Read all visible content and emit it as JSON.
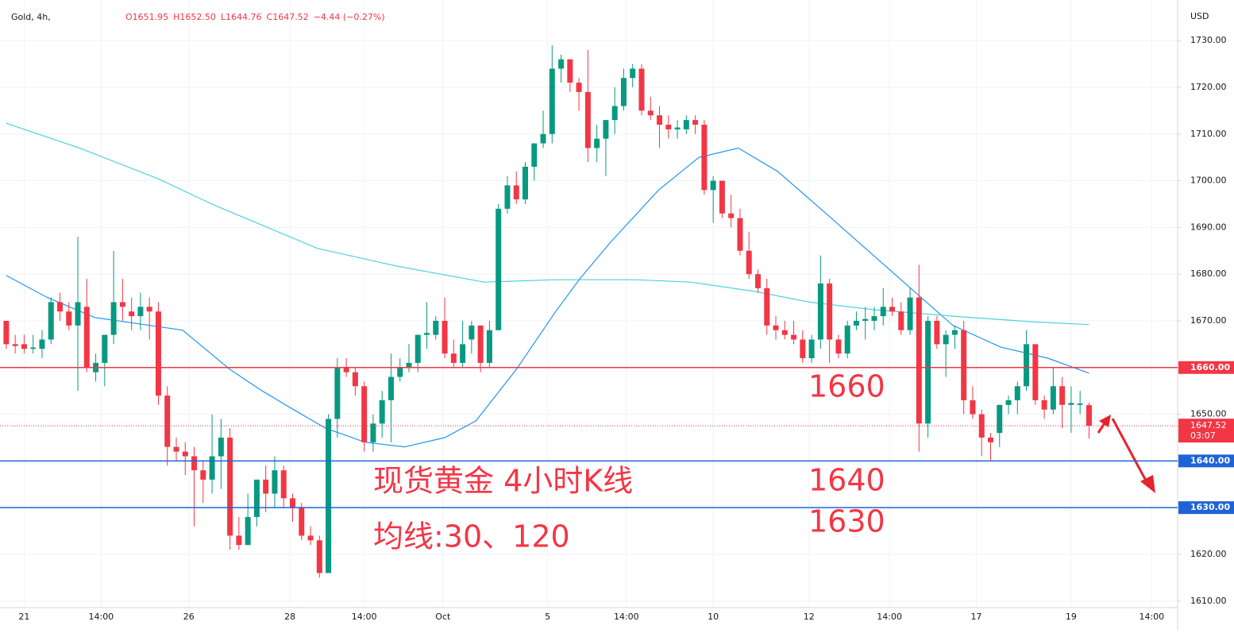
{
  "chart_data": {
    "type": "candlestick",
    "title": "Gold, 4h,",
    "legend": [
      "O1651.95",
      "H1652.50",
      "L1644.76",
      "C1647.52",
      "−4.44 (−0.27%)"
    ],
    "currency": "USD",
    "up_color": "#089981",
    "down_color": "#f23645",
    "open": [
      1670,
      1665,
      1665,
      1664,
      1664,
      1666,
      1674,
      1672,
      1669,
      1673,
      1659,
      1661,
      1667,
      1674,
      1672,
      1671,
      1673,
      1672,
      1654,
      1643,
      1642,
      1641,
      1638,
      1636,
      1641,
      1645,
      1624,
      1622,
      1628,
      1636,
      1633,
      1638,
      1632,
      1630,
      1624,
      1623,
      1616,
      1649,
      1660,
      1659,
      1656,
      1644,
      1648,
      1653,
      1658,
      1660,
      1661,
      1667,
      1667,
      1670,
      1663,
      1661,
      1666,
      1669,
      1661,
      1668,
      1694,
      1699,
      1696,
      1703,
      1708,
      1710,
      1724,
      1726,
      1721,
      1719,
      1707,
      1709,
      1713,
      1716,
      1722,
      1724,
      1715,
      1714,
      1712,
      1711,
      1711,
      1713,
      1712,
      1698,
      1700,
      1693,
      1692,
      1685,
      1680,
      1677,
      1669,
      1668,
      1667,
      1666,
      1662,
      1666,
      1678,
      1666,
      1663,
      1669,
      1670,
      1670,
      1671,
      1673,
      1672,
      1668,
      1675,
      1648,
      1670,
      1665,
      1667,
      1668,
      1653,
      1650,
      1645,
      1646,
      1652,
      1653,
      1656,
      1665,
      1653,
      1651,
      1656,
      1652,
      1652,
      1651.95
    ],
    "high": [
      1670,
      1667,
      1667,
      1667,
      1668,
      1675,
      1676,
      1674,
      1688,
      1679,
      1663,
      1667,
      1685,
      1679,
      1675,
      1676,
      1675,
      1674,
      1656,
      1645,
      1644,
      1643,
      1640,
      1650,
      1649,
      1647,
      1628,
      1633,
      1636,
      1639,
      1641,
      1639,
      1633,
      1631,
      1626,
      1624,
      1650,
      1662,
      1662,
      1660,
      1657,
      1650,
      1655,
      1663,
      1662,
      1665,
      1667,
      1674,
      1671,
      1675,
      1666,
      1670,
      1670,
      1669,
      1670,
      1695,
      1701,
      1702,
      1704,
      1708,
      1715,
      1729,
      1727,
      1726,
      1722,
      1728,
      1712,
      1713,
      1720,
      1724,
      1725,
      1725,
      1718,
      1716,
      1714,
      1713,
      1714,
      1714,
      1713,
      1701,
      1700,
      1697,
      1694,
      1689,
      1681,
      1679,
      1671,
      1670,
      1670,
      1668,
      1667,
      1684,
      1679,
      1667,
      1670,
      1672,
      1673,
      1673,
      1677,
      1675,
      1674,
      1677,
      1682,
      1671,
      1671,
      1668,
      1669,
      1670,
      1656,
      1651,
      1646,
      1652,
      1654,
      1657,
      1668,
      1665,
      1654,
      1660,
      1658,
      1656,
      1655,
      1652.5
    ],
    "low": [
      1664,
      1663,
      1663,
      1663,
      1662,
      1665,
      1670,
      1668,
      1655,
      1659,
      1657,
      1656,
      1665,
      1670,
      1668,
      1668,
      1666,
      1652,
      1639,
      1640,
      1637,
      1626,
      1631,
      1633,
      1634,
      1621,
      1621,
      1622,
      1626,
      1629,
      1630,
      1630,
      1627,
      1623,
      1622,
      1615,
      1616,
      1645,
      1658,
      1654,
      1642,
      1642,
      1645,
      1644,
      1657,
      1659,
      1659,
      1664,
      1666,
      1662,
      1660,
      1660,
      1663,
      1659,
      1660,
      1668,
      1693,
      1695,
      1695,
      1700,
      1707,
      1708,
      1721,
      1719,
      1715,
      1704,
      1704,
      1701,
      1710,
      1715,
      1720,
      1714,
      1713,
      1707,
      1709,
      1709,
      1710,
      1710,
      1697,
      1691,
      1692,
      1690,
      1684,
      1679,
      1676,
      1667,
      1666,
      1666,
      1665,
      1661,
      1661,
      1664,
      1661,
      1662,
      1662,
      1668,
      1666,
      1668,
      1669,
      1671,
      1667,
      1667,
      1642,
      1645,
      1664,
      1658,
      1664,
      1650,
      1649,
      1641,
      1640,
      1643,
      1650,
      1650,
      1655,
      1652,
      1649,
      1650,
      1647,
      1646,
      1650,
      1644.76
    ],
    "close": [
      1665,
      1664.6,
      1664,
      1664.3,
      1666,
      1674,
      1672,
      1669,
      1674,
      1660,
      1661,
      1667,
      1674,
      1673,
      1671,
      1673,
      1672,
      1654,
      1643,
      1642,
      1641,
      1638,
      1636,
      1641,
      1645,
      1624,
      1622,
      1628,
      1636,
      1633,
      1638,
      1632,
      1630,
      1624,
      1623,
      1616,
      1649,
      1660,
      1659,
      1656,
      1644,
      1648,
      1653,
      1658,
      1660,
      1661,
      1667,
      1667.4,
      1670,
      1663,
      1661,
      1665,
      1669,
      1661,
      1668,
      1694,
      1699,
      1696,
      1703,
      1708,
      1710,
      1724,
      1726,
      1721,
      1719,
      1707,
      1709,
      1713,
      1716,
      1722,
      1724,
      1715,
      1714,
      1712,
      1711,
      1711.4,
      1713,
      1712,
      1698,
      1700,
      1693,
      1692,
      1685,
      1680,
      1677,
      1669,
      1668,
      1667,
      1666,
      1662,
      1666,
      1678,
      1666,
      1663,
      1669,
      1670,
      1670.4,
      1671,
      1673,
      1672,
      1668,
      1675,
      1648,
      1670,
      1665,
      1667,
      1668,
      1653,
      1650,
      1645,
      1644,
      1652,
      1653,
      1656,
      1665,
      1653,
      1651,
      1656,
      1652,
      1652.4,
      1652.3,
      1647.52
    ],
    "lines": [
      {
        "color": "#2196f3",
        "x": [
          0,
          4.6,
          9.9,
          16.1,
          19.7,
          25,
          28.6,
          32.1,
          35.7,
          40.1,
          44.5,
          49,
          52.5,
          57,
          61.4,
          64.1,
          67.6,
          72.9,
          77.4,
          81.8,
          86.2,
          91.6,
          96.9,
          101.3,
          105.8,
          111.1,
          116.4,
          121
        ],
        "values": [
          1679.7,
          1675,
          1670.7,
          1669,
          1668,
          1659.6,
          1655,
          1651,
          1647,
          1644,
          1643,
          1645,
          1648.6,
          1659.6,
          1672,
          1679,
          1687,
          1698,
          1705,
          1707,
          1702,
          1693,
          1684,
          1676.6,
          1669,
          1664.4,
          1662,
          1658.8
        ]
      },
      {
        "color": "#4dd0e1",
        "x": [
          0,
          8.2,
          17,
          23.2,
          34.8,
          43.7,
          53.4,
          61.4,
          70.3,
          76.5,
          83.6,
          89.8,
          96.9,
          105.8,
          114.6,
          121
        ],
        "values": [
          1712.3,
          1707,
          1700.4,
          1694.8,
          1685.5,
          1681.7,
          1678.3,
          1678.8,
          1678.8,
          1678.3,
          1676.3,
          1674,
          1672.4,
          1671,
          1669.8,
          1669.2
        ]
      }
    ],
    "xlim": [
      -0.7,
      130.9
    ],
    "xticks": [
      {
        "value": 2,
        "label": "21"
      },
      {
        "value": 10.6,
        "label": "14:00"
      },
      {
        "value": 20.4,
        "label": "26"
      },
      {
        "value": 31.7,
        "label": "28"
      },
      {
        "value": 40,
        "label": "14:00"
      },
      {
        "value": 48.8,
        "label": "Oct"
      },
      {
        "value": 60.5,
        "label": "5"
      },
      {
        "value": 69.3,
        "label": "14:00"
      },
      {
        "value": 79,
        "label": "10"
      },
      {
        "value": 89.7,
        "label": "12"
      },
      {
        "value": 98.7,
        "label": "14:00"
      },
      {
        "value": 108.4,
        "label": "17"
      },
      {
        "value": 119,
        "label": "19"
      },
      {
        "value": 128,
        "label": "14:00"
      }
    ],
    "ylim": [
      1608.6,
      1738.7
    ],
    "yticks": [
      {
        "value": 1610,
        "label": "1610.00"
      },
      {
        "value": 1620,
        "label": "1620.00"
      },
      {
        "value": 1630,
        "label": "1630.00"
      },
      {
        "value": 1640,
        "label": "1640.00"
      },
      {
        "value": 1650,
        "label": "1650.00"
      },
      {
        "value": 1660,
        "label": "1660.00"
      },
      {
        "value": 1670,
        "label": "1670.00"
      },
      {
        "value": 1680,
        "label": "1680.00"
      },
      {
        "value": 1690,
        "label": "1690.00"
      },
      {
        "value": 1700,
        "label": "1700.00"
      },
      {
        "value": 1710,
        "label": "1710.00"
      },
      {
        "value": 1720,
        "label": "1720.00"
      },
      {
        "value": 1730,
        "label": "1730.00"
      }
    ],
    "grid": true,
    "levels": [
      {
        "value": 1660,
        "label": "1660.00",
        "color": "#f23645"
      },
      {
        "value": 1640,
        "label": "1640.00",
        "color": "#1e63d6"
      },
      {
        "value": 1630,
        "label": "1630.00",
        "color": "#1e63d6"
      }
    ],
    "last_price": {
      "value": 1647.52,
      "label": "1647.52",
      "countdown": "03:07"
    },
    "annotations": [
      "1660",
      "1640",
      "1630",
      "现货黄金 4小时K线",
      "均线:30、120"
    ]
  }
}
